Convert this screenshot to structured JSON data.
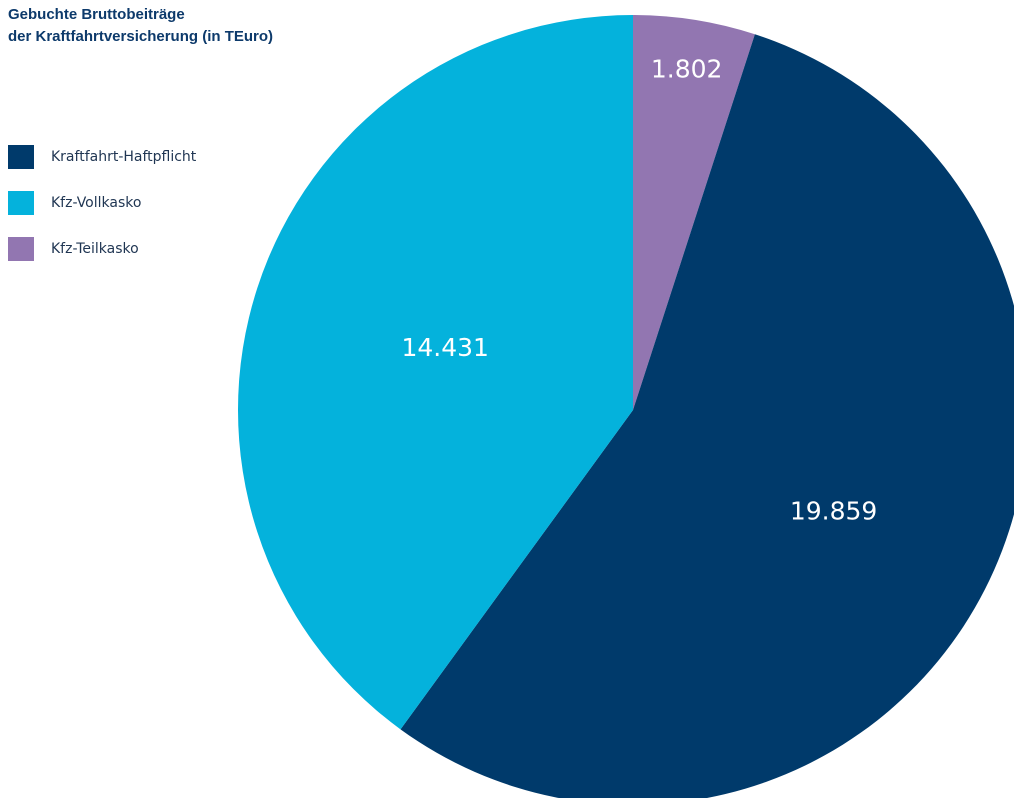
{
  "chart_data": {
    "type": "pie",
    "title_lines": [
      "Gebuchte Bruttobeiträge",
      "der Kraftfahrtversicherung (in TEuro)"
    ],
    "slices": [
      {
        "name": "Kraftfahrt-Haftpflicht",
        "value": 19859,
        "label": "19.859",
        "color": "#003a6b"
      },
      {
        "name": "Kfz-Vollkasko",
        "value": 14431,
        "label": "14.431",
        "color": "#04b2dc"
      },
      {
        "name": "Kfz-Teilkasko",
        "value": 1802,
        "label": "1.802",
        "color": "#9276b1"
      }
    ],
    "start": "top",
    "direction": "clockwise",
    "draw_order": [
      "Kfz-Teilkasko",
      "Kraftfahrt-Haftpflicht",
      "Kfz-Vollkasko"
    ],
    "legend_position": "top-left",
    "label_color": "#ffffff"
  }
}
